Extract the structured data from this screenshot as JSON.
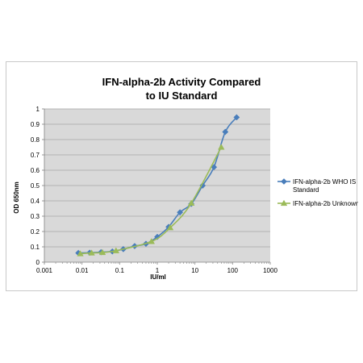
{
  "chart_data": {
    "type": "scatter",
    "title_lines": [
      "IFN-alpha-2b Activity Compared",
      "to IU Standard"
    ],
    "xlabel": "IU/ml",
    "ylabel": "OD 650nm",
    "xscale": "log",
    "xlim": [
      0.001,
      1000
    ],
    "ylim": [
      0,
      1
    ],
    "x_ticks": [
      0.001,
      0.01,
      0.1,
      1,
      10,
      100,
      1000
    ],
    "x_tick_labels": [
      "0.001",
      "0.01",
      "0.1",
      "1",
      "10",
      "100",
      "1000"
    ],
    "y_ticks": [
      0,
      0.1,
      0.2,
      0.3,
      0.4,
      0.5,
      0.6,
      0.7,
      0.8,
      0.9,
      1
    ],
    "y_tick_labels": [
      "0",
      "0.1",
      "0.2",
      "0.3",
      "0.4",
      "0.5",
      "0.6",
      "0.7",
      "0.8",
      "0.9",
      "1"
    ],
    "grid": "horizontal",
    "plot_background": "#d9d9d9",
    "legend_position": "right",
    "series": [
      {
        "name_lines": [
          "IFN-alpha-2b WHO IS",
          "Standard"
        ],
        "color": "#4a7ebb",
        "marker": "diamond",
        "x": [
          0.008,
          0.016,
          0.032,
          0.064,
          0.125,
          0.25,
          0.5,
          1,
          2,
          4,
          8,
          16,
          32,
          64,
          128
        ],
        "y": [
          0.06,
          0.062,
          0.065,
          0.07,
          0.085,
          0.105,
          0.12,
          0.165,
          0.23,
          0.325,
          0.38,
          0.5,
          0.62,
          0.85,
          0.945
        ]
      },
      {
        "name_lines": [
          "IFN-alpha-2b Unknown"
        ],
        "color": "#9bbb59",
        "marker": "triangle",
        "x": [
          0.009,
          0.018,
          0.035,
          0.08,
          0.7,
          2.2,
          8,
          50
        ],
        "y": [
          0.055,
          0.06,
          0.063,
          0.075,
          0.135,
          0.225,
          0.385,
          0.75
        ]
      }
    ]
  }
}
